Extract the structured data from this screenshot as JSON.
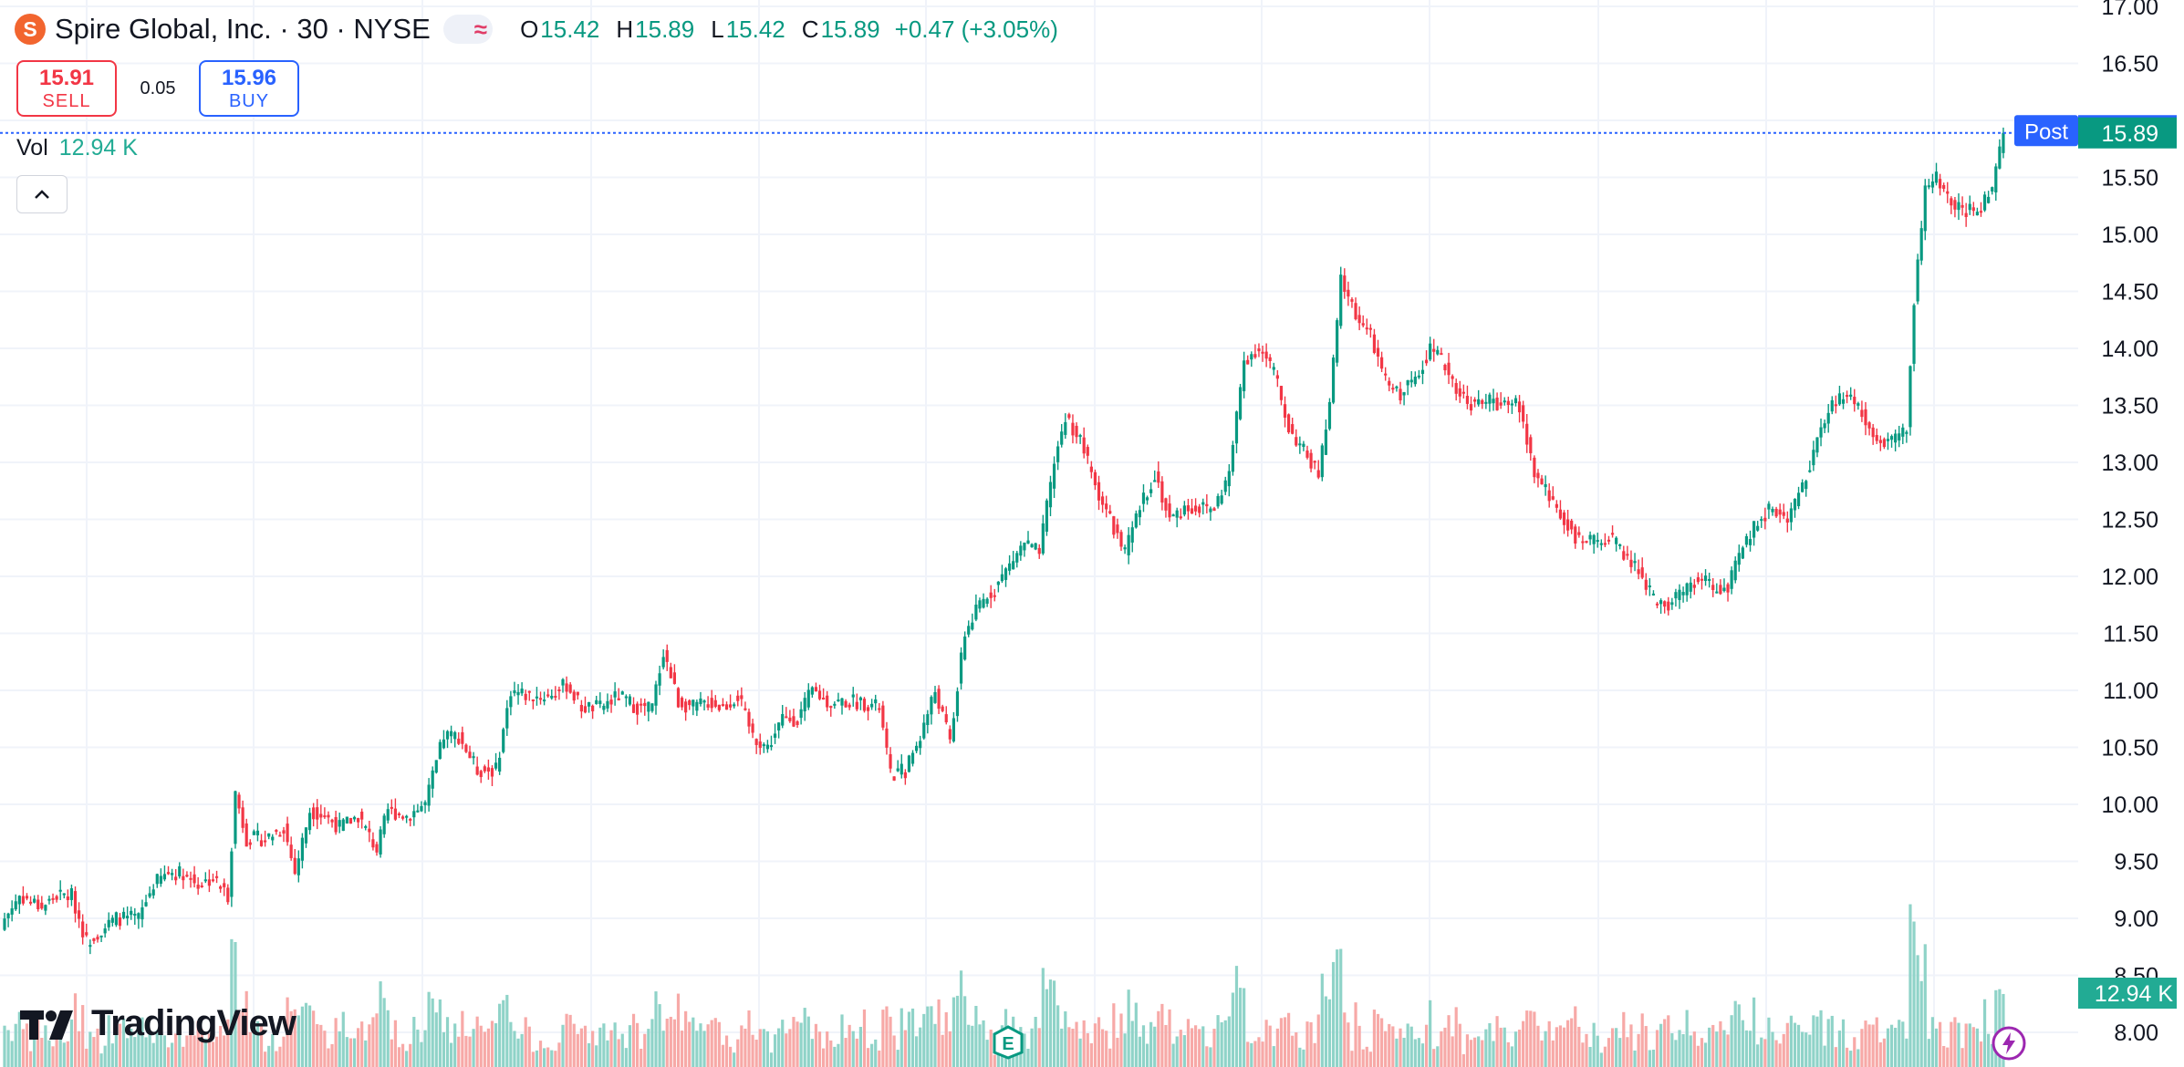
{
  "header": {
    "logo_letter": "S",
    "symbol": "Spire Global, Inc. · 30 · NYSE",
    "open_key": "O",
    "open": "15.42",
    "high_key": "H",
    "high": "15.89",
    "low_key": "L",
    "low": "15.42",
    "close_key": "C",
    "close": "15.89",
    "change": "+0.47 (+3.05%)"
  },
  "trade": {
    "sell_price": "15.91",
    "sell_label": "SELL",
    "spread": "0.05",
    "buy_price": "15.96",
    "buy_label": "BUY"
  },
  "volume": {
    "label": "Vol",
    "value": "12.94 K"
  },
  "branding": {
    "name": "TradingView"
  },
  "colors": {
    "up": "#089981",
    "down": "#f23645",
    "vol_up": "#8fd3c8",
    "vol_down": "#f7a9a7",
    "post": "#2962ff",
    "grid": "#f0f3fa"
  },
  "icons": [
    "chevron-up-icon",
    "moon-icon",
    "approx-icon",
    "tradingview-logo-icon",
    "earnings-e-icon",
    "lightning-icon"
  ],
  "chart_data": {
    "type": "candlestick",
    "ylim": [
      8.0,
      17.0
    ],
    "y_ticks": [
      "17.00",
      "16.50",
      "15.50",
      "15.00",
      "14.50",
      "14.00",
      "13.50",
      "13.00",
      "12.50",
      "12.00",
      "11.50",
      "11.00",
      "10.50",
      "10.00",
      "9.50",
      "9.00",
      "8.50",
      "8.00"
    ],
    "post_label": {
      "text": "Post",
      "value": "15.91"
    },
    "last_price": "15.89",
    "volume_label": "12.94 K",
    "anchors": [
      [
        0,
        9.0
      ],
      [
        4,
        9.2
      ],
      [
        10,
        9.1
      ],
      [
        14,
        9.2
      ],
      [
        18,
        9.2
      ],
      [
        22,
        8.8
      ],
      [
        26,
        8.9
      ],
      [
        30,
        9.0
      ],
      [
        36,
        9.0
      ],
      [
        40,
        9.3
      ],
      [
        44,
        9.4
      ],
      [
        48,
        9.4
      ],
      [
        52,
        9.3
      ],
      [
        56,
        9.35
      ],
      [
        60,
        9.2
      ],
      [
        62,
        10.1
      ],
      [
        65,
        9.7
      ],
      [
        70,
        9.7
      ],
      [
        75,
        9.8
      ],
      [
        78,
        9.4
      ],
      [
        82,
        9.95
      ],
      [
        86,
        9.9
      ],
      [
        90,
        9.8
      ],
      [
        95,
        9.9
      ],
      [
        100,
        9.6
      ],
      [
        103,
        9.95
      ],
      [
        108,
        9.9
      ],
      [
        113,
        10.0
      ],
      [
        118,
        10.6
      ],
      [
        122,
        10.6
      ],
      [
        127,
        10.3
      ],
      [
        132,
        10.3
      ],
      [
        136,
        11.0
      ],
      [
        141,
        10.95
      ],
      [
        146,
        10.95
      ],
      [
        151,
        11.05
      ],
      [
        155,
        10.85
      ],
      [
        160,
        10.85
      ],
      [
        165,
        10.95
      ],
      [
        170,
        10.85
      ],
      [
        174,
        10.85
      ],
      [
        177,
        11.35
      ],
      [
        181,
        10.9
      ],
      [
        185,
        10.85
      ],
      [
        189,
        10.9
      ],
      [
        193,
        10.85
      ],
      [
        197,
        10.95
      ],
      [
        201,
        10.6
      ],
      [
        205,
        10.5
      ],
      [
        209,
        10.75
      ],
      [
        213,
        10.75
      ],
      [
        217,
        11.0
      ],
      [
        221,
        10.9
      ],
      [
        225,
        10.9
      ],
      [
        230,
        10.9
      ],
      [
        235,
        10.85
      ],
      [
        238,
        10.25
      ],
      [
        242,
        10.3
      ],
      [
        246,
        10.6
      ],
      [
        250,
        11.0
      ],
      [
        254,
        10.55
      ],
      [
        258,
        11.5
      ],
      [
        262,
        11.75
      ],
      [
        266,
        11.9
      ],
      [
        270,
        12.1
      ],
      [
        274,
        12.3
      ],
      [
        278,
        12.2
      ],
      [
        282,
        13.0
      ],
      [
        285,
        13.4
      ],
      [
        289,
        13.2
      ],
      [
        293,
        12.8
      ],
      [
        297,
        12.5
      ],
      [
        301,
        12.2
      ],
      [
        305,
        12.6
      ],
      [
        309,
        12.9
      ],
      [
        313,
        12.5
      ],
      [
        317,
        12.6
      ],
      [
        321,
        12.6
      ],
      [
        325,
        12.6
      ],
      [
        329,
        12.9
      ],
      [
        333,
        13.9
      ],
      [
        337,
        14.0
      ],
      [
        341,
        13.8
      ],
      [
        345,
        13.3
      ],
      [
        349,
        13.1
      ],
      [
        353,
        12.9
      ],
      [
        356,
        13.5
      ],
      [
        359,
        14.6
      ],
      [
        363,
        14.3
      ],
      [
        367,
        14.1
      ],
      [
        371,
        13.7
      ],
      [
        375,
        13.6
      ],
      [
        379,
        13.75
      ],
      [
        383,
        14.0
      ],
      [
        387,
        13.85
      ],
      [
        391,
        13.6
      ],
      [
        395,
        13.5
      ],
      [
        399,
        13.55
      ],
      [
        403,
        13.5
      ],
      [
        407,
        13.5
      ],
      [
        411,
        12.9
      ],
      [
        415,
        12.7
      ],
      [
        419,
        12.5
      ],
      [
        423,
        12.3
      ],
      [
        427,
        12.3
      ],
      [
        431,
        12.35
      ],
      [
        435,
        12.2
      ],
      [
        439,
        12.05
      ],
      [
        443,
        11.8
      ],
      [
        447,
        11.75
      ],
      [
        451,
        11.85
      ],
      [
        455,
        12.0
      ],
      [
        459,
        11.9
      ],
      [
        463,
        11.9
      ],
      [
        467,
        12.25
      ],
      [
        471,
        12.5
      ],
      [
        475,
        12.6
      ],
      [
        479,
        12.5
      ],
      [
        483,
        12.8
      ],
      [
        487,
        13.2
      ],
      [
        491,
        13.5
      ],
      [
        495,
        13.6
      ],
      [
        499,
        13.45
      ],
      [
        503,
        13.2
      ],
      [
        507,
        13.2
      ],
      [
        511,
        13.3
      ],
      [
        513,
        14.4
      ],
      [
        516,
        15.4
      ],
      [
        519,
        15.5
      ],
      [
        522,
        15.3
      ],
      [
        526,
        15.2
      ],
      [
        530,
        15.2
      ],
      [
        534,
        15.4
      ],
      [
        537,
        15.89
      ]
    ]
  }
}
